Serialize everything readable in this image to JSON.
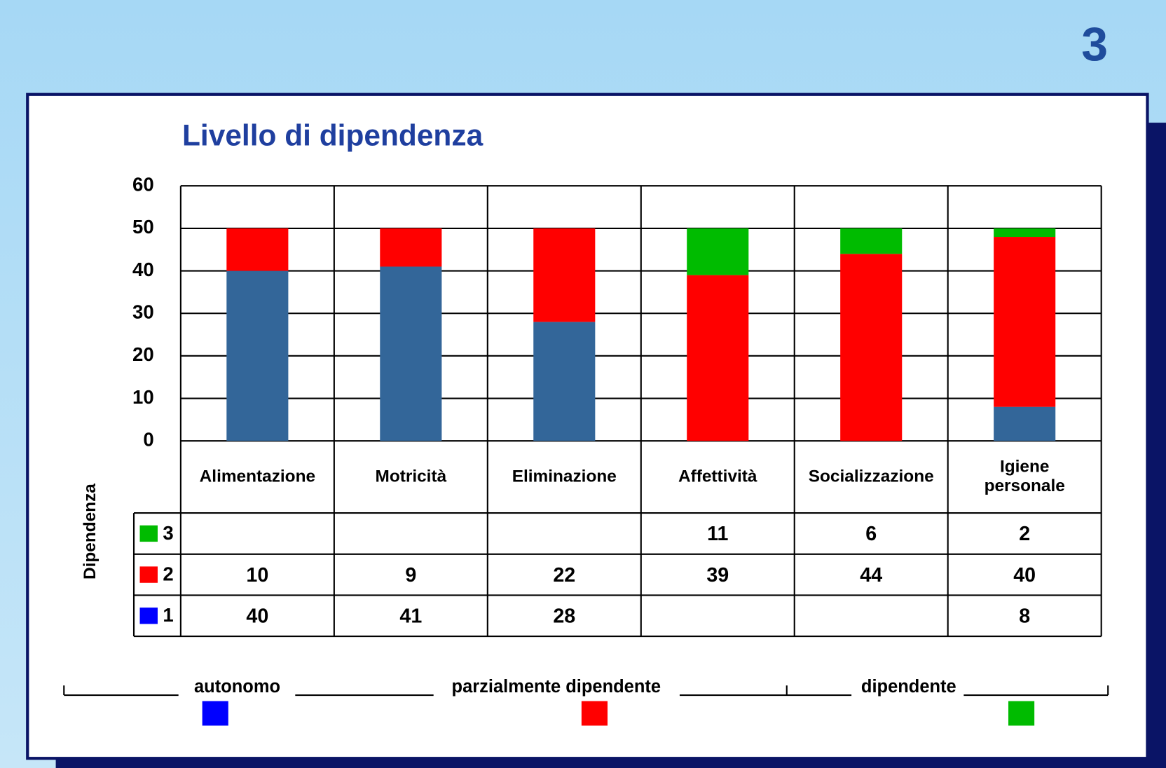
{
  "page_number": "3",
  "chart_data": {
    "type": "bar",
    "stacked": true,
    "title": "Livello di dipendenza",
    "ylabel": "Dipendenza",
    "categories": [
      "Alimentazione",
      "Motricità",
      "Eliminazione",
      "Affettività",
      "Socializzazione",
      "Igiene personale"
    ],
    "series": [
      {
        "name": "1",
        "color": "#336699",
        "key_color": "#0000ff",
        "values": [
          40,
          41,
          28,
          null,
          null,
          8
        ]
      },
      {
        "name": "2",
        "color": "#ff0000",
        "key_color": "#ff0000",
        "values": [
          10,
          9,
          22,
          39,
          44,
          40
        ]
      },
      {
        "name": "3",
        "color": "#00bb00",
        "key_color": "#00bb00",
        "values": [
          null,
          null,
          null,
          11,
          6,
          2
        ]
      }
    ],
    "ylim": [
      0,
      60
    ],
    "yticks": [
      0,
      10,
      20,
      30,
      40,
      50,
      60
    ],
    "grid": true,
    "scale": [
      {
        "label": "autonomo",
        "color": "#0000ff"
      },
      {
        "label": "parzialmente dipendente",
        "color": "#ff0000"
      },
      {
        "label": "dipendente",
        "color": "#00bb00"
      }
    ]
  }
}
